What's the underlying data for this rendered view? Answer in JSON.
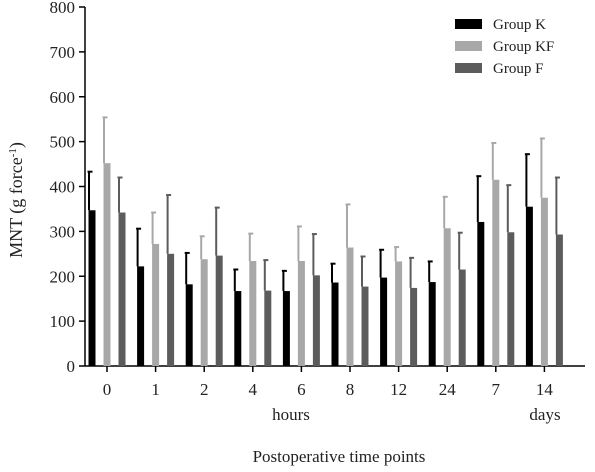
{
  "chart_data": {
    "type": "bar",
    "ylabel_main": "MNT (g force",
    "ylabel_sup": "-1",
    "ylabel_close": ")",
    "xlabel": "Postoperative time points",
    "group_labels": {
      "hours": "hours",
      "days": "days"
    },
    "categories": [
      "0",
      "1",
      "2",
      "4",
      "6",
      "8",
      "12",
      "24",
      "7",
      "14"
    ],
    "ylim": [
      0,
      800
    ],
    "yticks": [
      0,
      100,
      200,
      300,
      400,
      500,
      600,
      700,
      800
    ],
    "legend_position": "top-right",
    "error_bars": "upper",
    "series": [
      {
        "name": "Group K",
        "color": "#000000",
        "values": [
          347,
          222,
          182,
          167,
          167,
          186,
          197,
          187,
          321,
          355
        ],
        "errors": [
          86,
          84,
          70,
          48,
          45,
          42,
          62,
          46,
          102,
          117
        ]
      },
      {
        "name": "Group KF",
        "color": "#a8a8a8",
        "values": [
          452,
          272,
          238,
          234,
          234,
          264,
          233,
          307,
          415,
          375
        ],
        "errors": [
          102,
          70,
          51,
          61,
          77,
          96,
          32,
          70,
          82,
          132
        ]
      },
      {
        "name": "Group F",
        "color": "#5c5c5c",
        "values": [
          342,
          250,
          246,
          168,
          202,
          177,
          174,
          215,
          298,
          293
        ],
        "errors": [
          78,
          131,
          107,
          68,
          92,
          67,
          67,
          82,
          105,
          127
        ]
      }
    ]
  }
}
